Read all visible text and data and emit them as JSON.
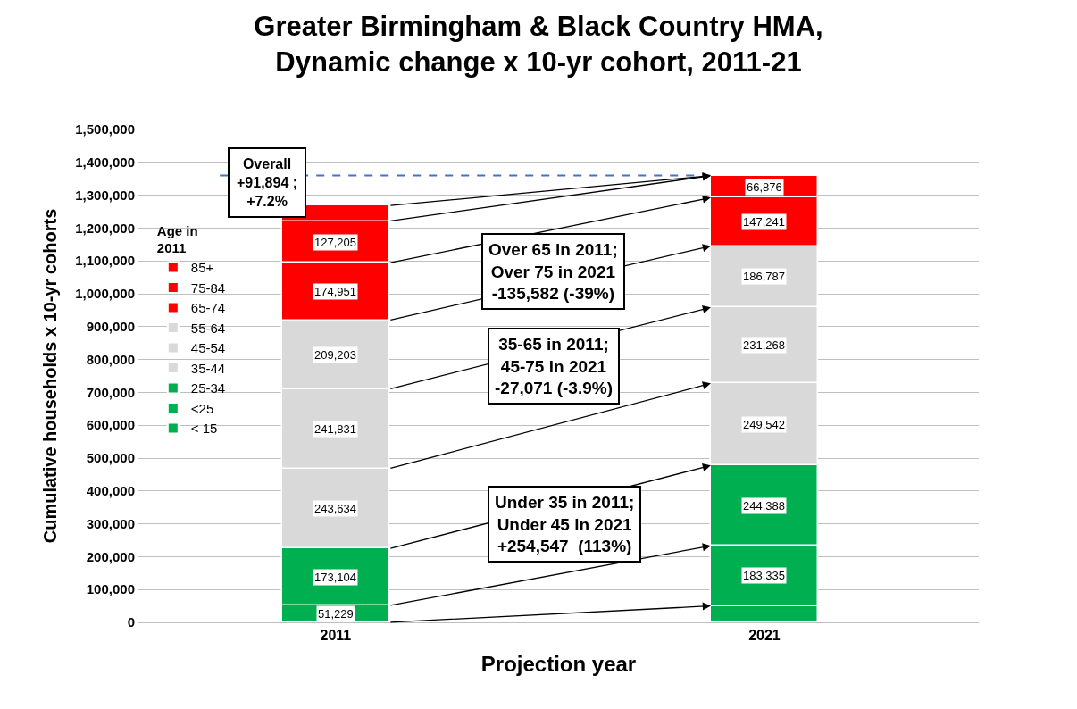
{
  "chart_data": {
    "type": "bar",
    "stacked": true,
    "title": "Greater Birmingham & Black Country HMA,\nDynamic change x 10-yr cohort, 2011-21",
    "xlabel": "Projection year",
    "ylabel": "Cumulative households x 10-yr cohorts",
    "legend_title": "Age in\n2011",
    "legend": "left",
    "grid": "y",
    "categories": [
      "2011",
      "2021"
    ],
    "ylim": [
      0,
      1500000
    ],
    "yticks": [
      {
        "value": 0,
        "label": "0"
      },
      {
        "value": 100000,
        "label": "100,000"
      },
      {
        "value": 200000,
        "label": "200,000"
      },
      {
        "value": 300000,
        "label": "300,000"
      },
      {
        "value": 400000,
        "label": "400,000"
      },
      {
        "value": 500000,
        "label": "500,000"
      },
      {
        "value": 600000,
        "label": "600,000"
      },
      {
        "value": 700000,
        "label": "700,000"
      },
      {
        "value": 800000,
        "label": "800,000"
      },
      {
        "value": 900000,
        "label": "900,000"
      },
      {
        "value": 1000000,
        "label": "1,000,000"
      },
      {
        "value": 1100000,
        "label": "1,100,000"
      },
      {
        "value": 1200000,
        "label": "1,200,000"
      },
      {
        "value": 1300000,
        "label": "1,300,000"
      },
      {
        "value": 1400000,
        "label": "1,400,000"
      },
      {
        "value": 1500000,
        "label": "1,500,000"
      }
    ],
    "series": [
      {
        "name": "< 15",
        "color": "#00b050",
        "values": [
          null,
          50000
        ],
        "value_labels": [
          null,
          null
        ]
      },
      {
        "name": "<25",
        "color": "#00b050",
        "values": [
          51229,
          183335
        ],
        "value_labels": [
          "51,229",
          "183,335"
        ]
      },
      {
        "name": "25-34",
        "color": "#00b050",
        "values": [
          173104,
          244388
        ],
        "value_labels": [
          "173,104",
          "244,388"
        ]
      },
      {
        "name": "35-44",
        "color": "#d9d9d9",
        "values": [
          243634,
          249542
        ],
        "value_labels": [
          "243,634",
          "249,542"
        ]
      },
      {
        "name": "45-54",
        "color": "#d9d9d9",
        "values": [
          241831,
          231268
        ],
        "value_labels": [
          "241,831",
          "231,268"
        ]
      },
      {
        "name": "55-64",
        "color": "#d9d9d9",
        "values": [
          209203,
          186787
        ],
        "value_labels": [
          "209,203",
          "186,787"
        ]
      },
      {
        "name": "65-74",
        "color": "#ff0000",
        "values": [
          174951,
          147241
        ],
        "value_labels": [
          "174,951",
          "147,241"
        ]
      },
      {
        "name": "75-84",
        "color": "#ff0000",
        "values": [
          127205,
          66876
        ],
        "value_labels": [
          "127,205",
          "66,876"
        ]
      },
      {
        "name": "85+",
        "color": "#ff0000",
        "values": [
          47000,
          null
        ],
        "value_labels": [
          null,
          null
        ]
      }
    ],
    "ref_lines": [
      {
        "axis": "y",
        "value": 1360000,
        "color": "#4472c4",
        "line_style": "dashed"
      }
    ],
    "annotations": [
      "Overall\n+91,894 ;\n+7.2%",
      "Over 65 in 2011;\nOver 75 in 2021\n-135,582 (-39%)",
      "35-65 in 2011;\n45-75 in 2021\n-27,071 (-3.9%)",
      "Under 35 in 2011;\nUnder 45 in 2021\n+254,547  (113%)"
    ]
  }
}
